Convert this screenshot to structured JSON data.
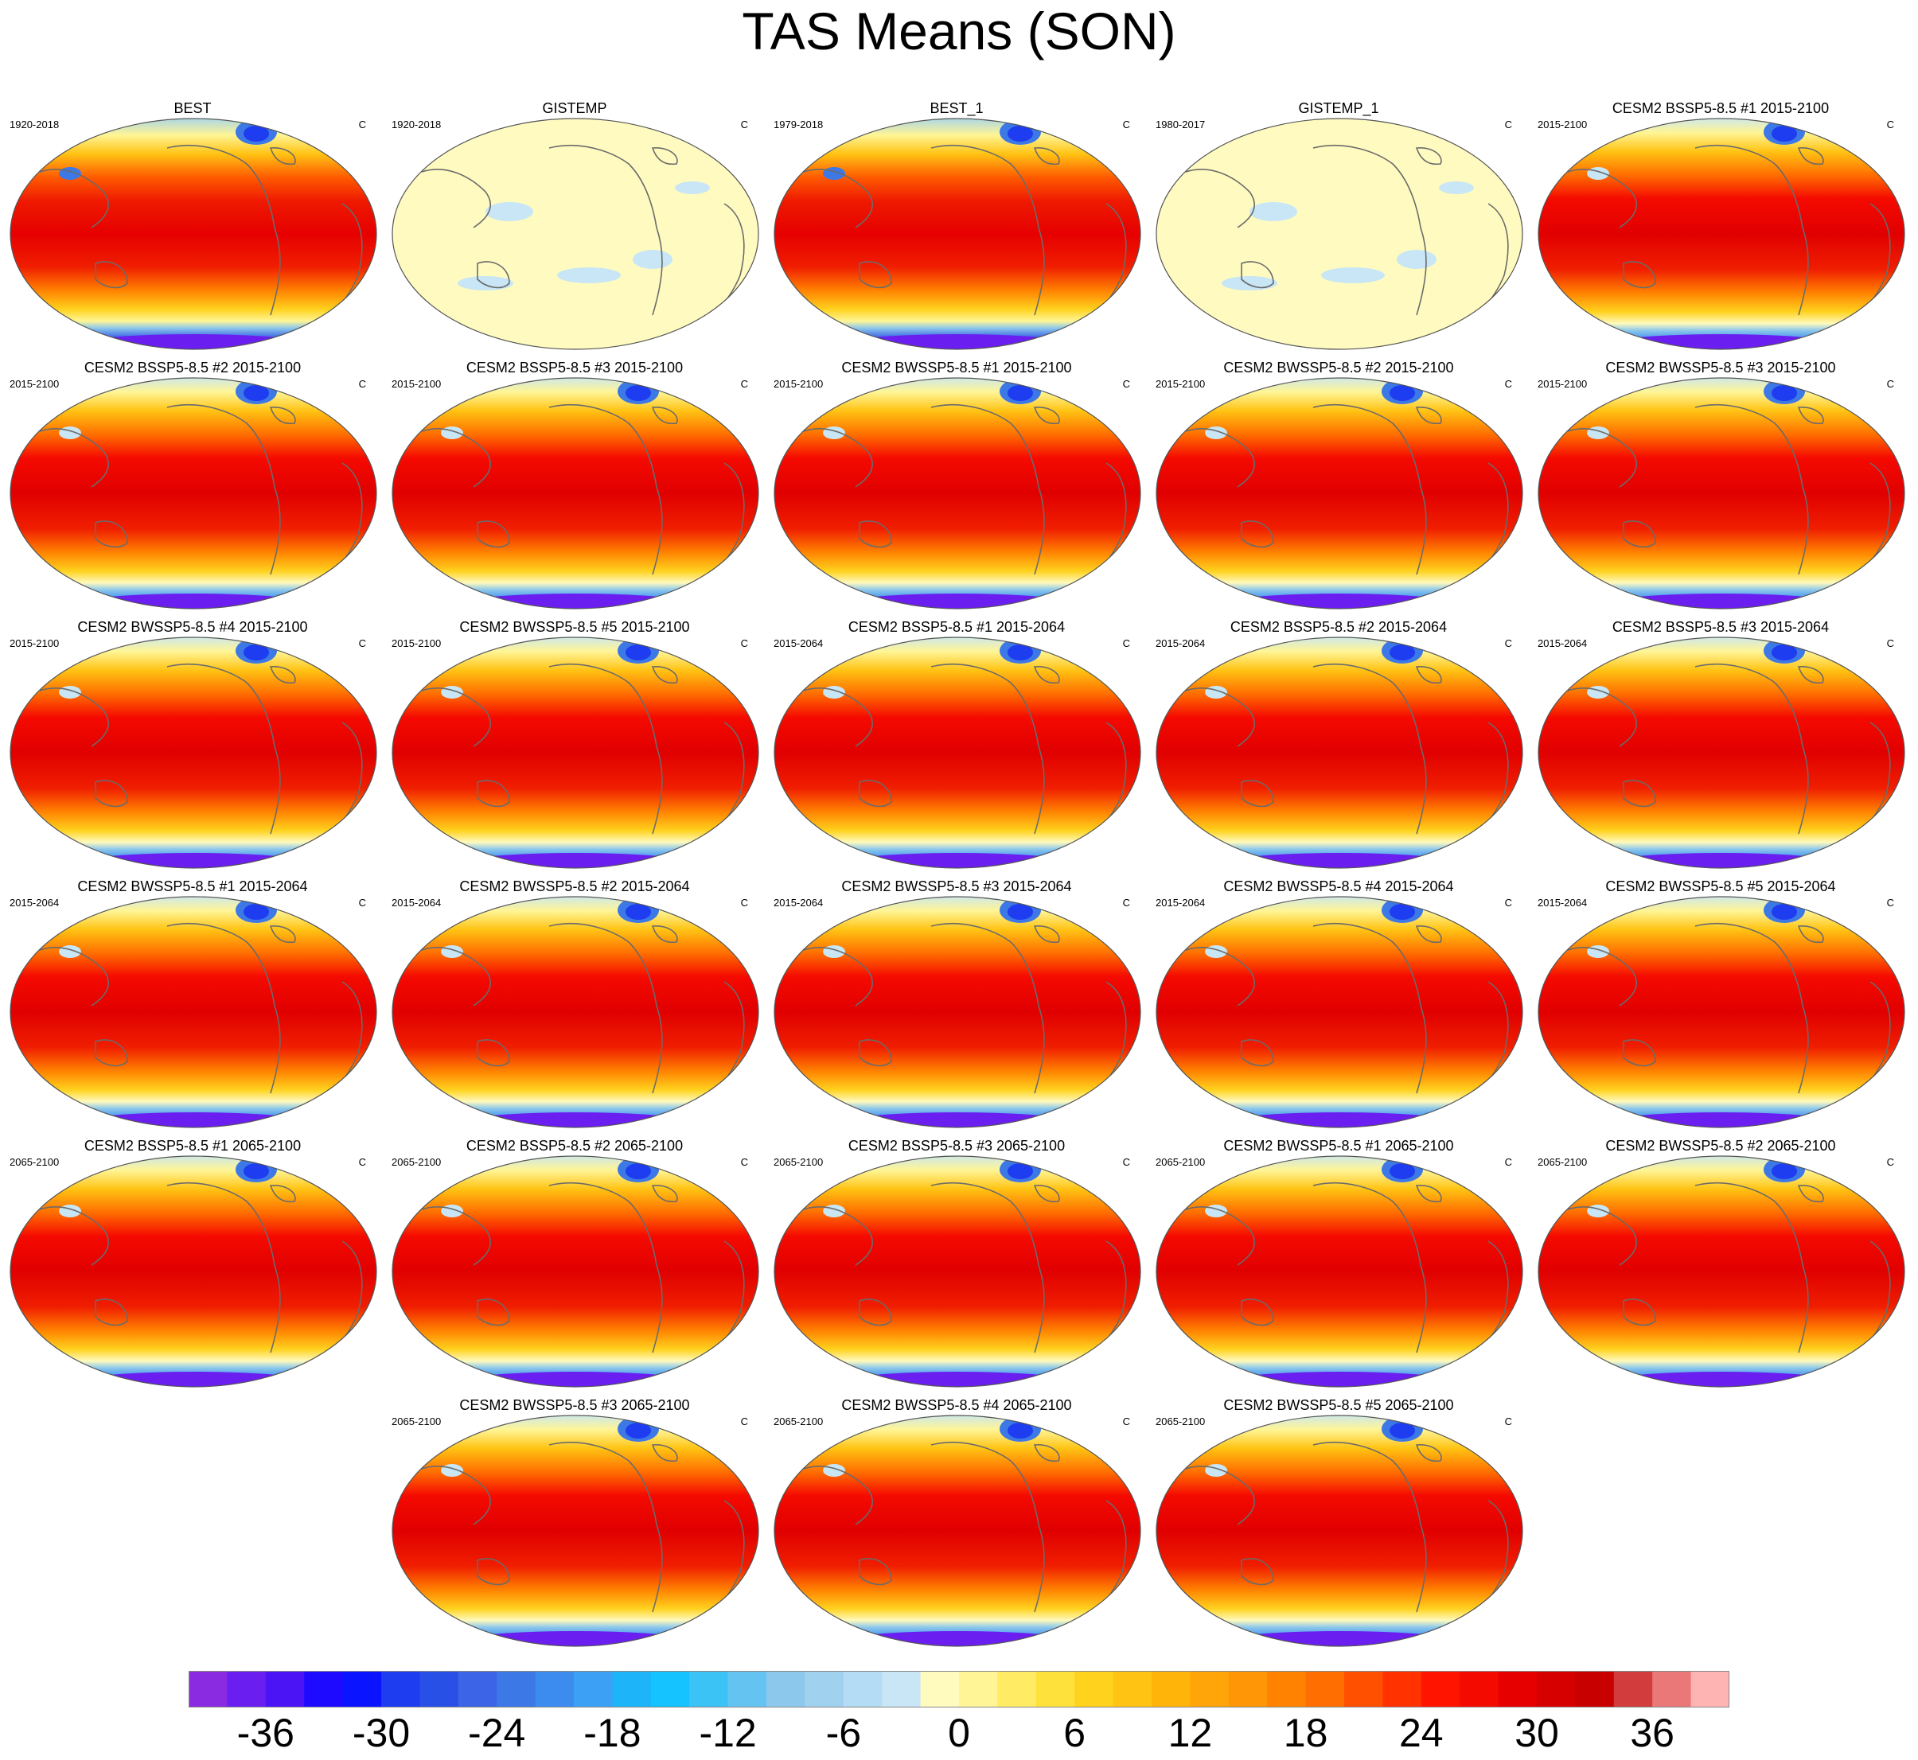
{
  "title": "TAS Means (SON)",
  "panels": [
    {
      "title": "BEST",
      "left": "1920-2018",
      "right": "C",
      "kind": "obs"
    },
    {
      "title": "GISTEMP",
      "left": "1920-2018",
      "right": "C",
      "kind": "anom"
    },
    {
      "title": "BEST_1",
      "left": "1979-2018",
      "right": "C",
      "kind": "obs"
    },
    {
      "title": "GISTEMP_1",
      "left": "1980-2017",
      "right": "C",
      "kind": "anom"
    },
    {
      "title": "CESM2 BSSP5-8.5 #1 2015-2100",
      "left": "2015-2100",
      "right": "C",
      "kind": "model"
    },
    {
      "title": "CESM2 BSSP5-8.5 #2 2015-2100",
      "left": "2015-2100",
      "right": "C",
      "kind": "model"
    },
    {
      "title": "CESM2 BSSP5-8.5 #3 2015-2100",
      "left": "2015-2100",
      "right": "C",
      "kind": "model"
    },
    {
      "title": "CESM2 BWSSP5-8.5 #1 2015-2100",
      "left": "2015-2100",
      "right": "C",
      "kind": "model"
    },
    {
      "title": "CESM2 BWSSP5-8.5 #2 2015-2100",
      "left": "2015-2100",
      "right": "C",
      "kind": "model"
    },
    {
      "title": "CESM2 BWSSP5-8.5 #3 2015-2100",
      "left": "2015-2100",
      "right": "C",
      "kind": "model"
    },
    {
      "title": "CESM2 BWSSP5-8.5 #4 2015-2100",
      "left": "2015-2100",
      "right": "C",
      "kind": "model"
    },
    {
      "title": "CESM2 BWSSP5-8.5 #5 2015-2100",
      "left": "2015-2100",
      "right": "C",
      "kind": "model"
    },
    {
      "title": "CESM2 BSSP5-8.5 #1 2015-2064",
      "left": "2015-2064",
      "right": "C",
      "kind": "model"
    },
    {
      "title": "CESM2 BSSP5-8.5 #2 2015-2064",
      "left": "2015-2064",
      "right": "C",
      "kind": "model"
    },
    {
      "title": "CESM2 BSSP5-8.5 #3 2015-2064",
      "left": "2015-2064",
      "right": "C",
      "kind": "model"
    },
    {
      "title": "CESM2 BWSSP5-8.5 #1 2015-2064",
      "left": "2015-2064",
      "right": "C",
      "kind": "model"
    },
    {
      "title": "CESM2 BWSSP5-8.5 #2 2015-2064",
      "left": "2015-2064",
      "right": "C",
      "kind": "model"
    },
    {
      "title": "CESM2 BWSSP5-8.5 #3 2015-2064",
      "left": "2015-2064",
      "right": "C",
      "kind": "model"
    },
    {
      "title": "CESM2 BWSSP5-8.5 #4 2015-2064",
      "left": "2015-2064",
      "right": "C",
      "kind": "model"
    },
    {
      "title": "CESM2 BWSSP5-8.5 #5 2015-2064",
      "left": "2015-2064",
      "right": "C",
      "kind": "model"
    },
    {
      "title": "CESM2 BSSP5-8.5 #1 2065-2100",
      "left": "2065-2100",
      "right": "C",
      "kind": "model"
    },
    {
      "title": "CESM2 BSSP5-8.5 #2 2065-2100",
      "left": "2065-2100",
      "right": "C",
      "kind": "model"
    },
    {
      "title": "CESM2 BSSP5-8.5 #3 2065-2100",
      "left": "2065-2100",
      "right": "C",
      "kind": "model"
    },
    {
      "title": "CESM2 BWSSP5-8.5 #1 2065-2100",
      "left": "2065-2100",
      "right": "C",
      "kind": "model"
    },
    {
      "title": "CESM2 BWSSP5-8.5 #2 2065-2100",
      "left": "2065-2100",
      "right": "C",
      "kind": "model"
    },
    {
      "title": "CESM2 BWSSP5-8.5 #3 2065-2100",
      "left": "2065-2100",
      "right": "C",
      "kind": "model"
    },
    {
      "title": "CESM2 BWSSP5-8.5 #4 2065-2100",
      "left": "2065-2100",
      "right": "C",
      "kind": "model"
    },
    {
      "title": "CESM2 BWSSP5-8.5 #5 2065-2100",
      "left": "2065-2100",
      "right": "C",
      "kind": "model"
    }
  ],
  "colorbar": {
    "labels": [
      "-36",
      "-30",
      "-24",
      "-18",
      "-12",
      "-6",
      "0",
      "6",
      "12",
      "18",
      "24",
      "30",
      "36"
    ],
    "colors": [
      "#8a2be2",
      "#6a1ef0",
      "#4b14f5",
      "#1e0aff",
      "#0a14ff",
      "#1e3cf0",
      "#2850e6",
      "#3c64e6",
      "#3c78e6",
      "#3c8cf0",
      "#3ca0f5",
      "#1eb4fa",
      "#14c3ff",
      "#3cc3f5",
      "#64c3f0",
      "#8cc8eb",
      "#a0d2f0",
      "#b4dcf5",
      "#c8e6f5",
      "#fffabe",
      "#fff596",
      "#ffeb64",
      "#ffe13c",
      "#ffd21e",
      "#ffc314",
      "#ffb40a",
      "#ffa50a",
      "#ff9605",
      "#ff8200",
      "#ff6e00",
      "#ff5000",
      "#ff3200",
      "#ff1400",
      "#f50a00",
      "#e60000",
      "#d70000",
      "#c80000",
      "#d23c3c",
      "#eb7878",
      "#ffb4b4"
    ]
  }
}
